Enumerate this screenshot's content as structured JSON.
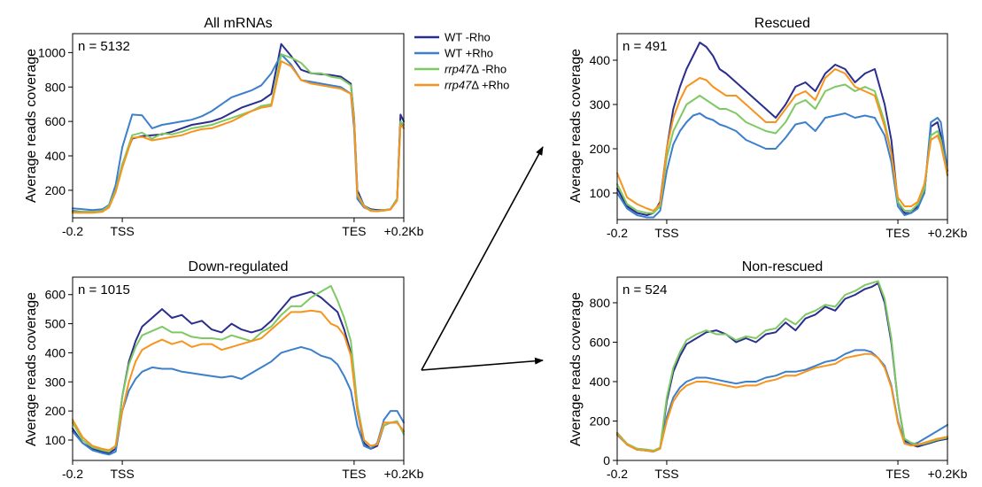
{
  "chart_data": [
    {
      "id": "all",
      "type": "line",
      "title": "All mRNAs",
      "ylabel": "Average reads coverage",
      "xlabel": "",
      "n_label": "n = 5132",
      "xlim": [
        0,
        100
      ],
      "ylim": [
        40,
        1110
      ],
      "yticks": [
        200,
        400,
        600,
        800,
        1000
      ],
      "xticks": [
        {
          "x": 0,
          "label": "-0.2"
        },
        {
          "x": 15,
          "label": "TSS"
        },
        {
          "x": 85,
          "label": "TES"
        },
        {
          "x": 100,
          "label": "+0.2Kb"
        }
      ],
      "x": [
        0,
        3,
        6,
        9,
        11,
        13,
        15,
        18,
        21,
        24,
        27,
        30,
        33,
        36,
        39,
        42,
        45,
        48,
        51,
        54,
        57,
        60,
        63,
        66,
        69,
        72,
        75,
        78,
        81,
        84,
        85,
        86,
        88,
        90,
        92,
        94,
        96,
        98,
        99,
        100
      ],
      "series": [
        {
          "name": "WT -Rho",
          "values": [
            80,
            75,
            75,
            80,
            110,
            200,
            350,
            500,
            515,
            520,
            525,
            540,
            560,
            580,
            590,
            600,
            620,
            650,
            680,
            700,
            720,
            760,
            1050,
            980,
            900,
            880,
            875,
            870,
            860,
            820,
            620,
            200,
            110,
            90,
            85,
            85,
            90,
            150,
            640,
            600
          ]
        },
        {
          "name": "WT +Rho",
          "values": [
            95,
            90,
            85,
            90,
            115,
            230,
            450,
            640,
            635,
            560,
            580,
            590,
            600,
            610,
            630,
            660,
            700,
            740,
            760,
            780,
            810,
            880,
            990,
            930,
            840,
            830,
            820,
            810,
            800,
            760,
            560,
            150,
            100,
            85,
            80,
            82,
            90,
            150,
            590,
            560
          ]
        },
        {
          "name": "rrp47Δ -Rho",
          "values": [
            75,
            75,
            75,
            80,
            110,
            200,
            350,
            520,
            535,
            500,
            530,
            525,
            540,
            560,
            570,
            580,
            600,
            620,
            640,
            660,
            690,
            700,
            990,
            970,
            940,
            880,
            880,
            860,
            850,
            810,
            610,
            180,
            110,
            85,
            80,
            85,
            90,
            150,
            600,
            580
          ]
        },
        {
          "name": "rrp47Δ +Rho",
          "values": [
            70,
            70,
            70,
            75,
            100,
            190,
            330,
            505,
            510,
            490,
            500,
            510,
            520,
            540,
            555,
            560,
            580,
            600,
            630,
            660,
            680,
            690,
            950,
            920,
            840,
            820,
            810,
            800,
            790,
            760,
            600,
            170,
            105,
            80,
            78,
            82,
            88,
            140,
            580,
            560
          ]
        }
      ]
    },
    {
      "id": "down",
      "type": "line",
      "title": "Down-regulated",
      "ylabel": "Average reads coverage",
      "xlabel": "",
      "n_label": "n = 1015",
      "xlim": [
        0,
        100
      ],
      "ylim": [
        30,
        660
      ],
      "yticks": [
        100,
        200,
        300,
        400,
        500,
        600
      ],
      "xticks": [
        {
          "x": 0,
          "label": "-0.2"
        },
        {
          "x": 15,
          "label": "TSS"
        },
        {
          "x": 85,
          "label": "TES"
        },
        {
          "x": 100,
          "label": "+0.2Kb"
        }
      ],
      "x": [
        0,
        3,
        6,
        9,
        11,
        13,
        15,
        17,
        19,
        21,
        24,
        27,
        30,
        33,
        36,
        39,
        42,
        45,
        48,
        51,
        54,
        57,
        60,
        63,
        66,
        69,
        72,
        75,
        78,
        80,
        82,
        84,
        86,
        88,
        90,
        92,
        94,
        96,
        98,
        100
      ],
      "series": [
        {
          "name": "WT -Rho",
          "values": [
            140,
            90,
            70,
            60,
            55,
            70,
            250,
            370,
            440,
            490,
            520,
            550,
            520,
            530,
            500,
            510,
            480,
            470,
            500,
            480,
            470,
            480,
            510,
            550,
            590,
            600,
            610,
            590,
            560,
            540,
            480,
            400,
            200,
            90,
            70,
            80,
            150,
            160,
            160,
            130
          ]
        },
        {
          "name": "WT +Rho",
          "values": [
            130,
            90,
            65,
            55,
            50,
            60,
            200,
            270,
            310,
            335,
            350,
            345,
            345,
            335,
            330,
            325,
            320,
            315,
            320,
            310,
            330,
            350,
            370,
            400,
            410,
            420,
            410,
            390,
            380,
            360,
            320,
            270,
            150,
            80,
            70,
            90,
            170,
            200,
            200,
            160
          ]
        },
        {
          "name": "rrp47Δ -Rho",
          "values": [
            160,
            100,
            75,
            65,
            60,
            80,
            250,
            360,
            420,
            460,
            475,
            490,
            470,
            470,
            455,
            450,
            450,
            445,
            460,
            450,
            440,
            470,
            490,
            530,
            560,
            560,
            590,
            610,
            630,
            580,
            520,
            440,
            220,
            100,
            80,
            85,
            150,
            160,
            165,
            120
          ]
        },
        {
          "name": "rrp47Δ +Rho",
          "values": [
            170,
            110,
            80,
            70,
            65,
            80,
            200,
            300,
            370,
            410,
            430,
            445,
            430,
            440,
            420,
            430,
            430,
            410,
            420,
            430,
            440,
            450,
            480,
            510,
            540,
            540,
            545,
            540,
            500,
            490,
            460,
            390,
            200,
            100,
            80,
            85,
            160,
            160,
            160,
            130
          ]
        }
      ]
    },
    {
      "id": "rescued",
      "type": "line",
      "title": "Rescued",
      "ylabel": "Average reads coverage",
      "xlabel": "",
      "n_label": "n = 491",
      "xlim": [
        0,
        100
      ],
      "ylim": [
        40,
        460
      ],
      "yticks": [
        100,
        200,
        300,
        400
      ],
      "xticks": [
        {
          "x": 0,
          "label": "-0.2"
        },
        {
          "x": 15,
          "label": "TSS"
        },
        {
          "x": 85,
          "label": "TES"
        },
        {
          "x": 100,
          "label": "+0.2Kb"
        }
      ],
      "x": [
        0,
        3,
        6,
        9,
        11,
        13,
        15,
        17,
        19,
        21,
        23,
        25,
        27,
        29,
        31,
        33,
        36,
        39,
        42,
        45,
        48,
        51,
        54,
        57,
        60,
        63,
        66,
        69,
        72,
        75,
        78,
        81,
        83,
        85,
        87,
        89,
        91,
        93,
        95,
        97,
        98,
        100
      ],
      "series": [
        {
          "name": "WT -Rho",
          "values": [
            110,
            70,
            55,
            50,
            55,
            80,
            200,
            290,
            340,
            380,
            410,
            440,
            430,
            410,
            380,
            370,
            350,
            330,
            310,
            290,
            270,
            300,
            340,
            350,
            330,
            370,
            390,
            380,
            350,
            370,
            380,
            300,
            220,
            80,
            55,
            55,
            70,
            100,
            250,
            260,
            230,
            140
          ]
        },
        {
          "name": "WT +Rho",
          "values": [
            100,
            65,
            50,
            45,
            45,
            60,
            150,
            210,
            240,
            260,
            275,
            280,
            270,
            265,
            255,
            250,
            240,
            220,
            210,
            200,
            200,
            225,
            255,
            260,
            240,
            270,
            275,
            280,
            270,
            275,
            270,
            230,
            170,
            70,
            50,
            55,
            65,
            100,
            260,
            270,
            260,
            150
          ]
        },
        {
          "name": "rrp47Δ -Rho",
          "values": [
            120,
            75,
            60,
            55,
            55,
            70,
            180,
            240,
            270,
            300,
            310,
            320,
            310,
            300,
            290,
            290,
            280,
            260,
            250,
            240,
            235,
            260,
            300,
            310,
            290,
            330,
            340,
            345,
            330,
            340,
            330,
            260,
            190,
            80,
            60,
            60,
            75,
            110,
            230,
            240,
            220,
            140
          ]
        },
        {
          "name": "rrp47Δ +Rho",
          "values": [
            145,
            90,
            75,
            65,
            60,
            75,
            200,
            270,
            310,
            340,
            350,
            360,
            355,
            340,
            330,
            320,
            320,
            300,
            280,
            260,
            260,
            290,
            320,
            330,
            310,
            360,
            380,
            370,
            340,
            330,
            320,
            250,
            190,
            90,
            70,
            70,
            80,
            120,
            220,
            230,
            210,
            140
          ]
        }
      ]
    },
    {
      "id": "nonrescued",
      "type": "line",
      "title": "Non-rescued",
      "ylabel": "Average reads coverage",
      "xlabel": "",
      "n_label": "n = 524",
      "xlim": [
        0,
        100
      ],
      "ylim": [
        0,
        930
      ],
      "yticks": [
        0,
        200,
        400,
        600,
        800
      ],
      "xticks": [
        {
          "x": 0,
          "label": "-0.2"
        },
        {
          "x": 15,
          "label": "TSS"
        },
        {
          "x": 85,
          "label": "TES"
        },
        {
          "x": 100,
          "label": "+0.2Kb"
        }
      ],
      "x": [
        0,
        3,
        6,
        9,
        11,
        13,
        15,
        17,
        19,
        21,
        24,
        27,
        30,
        33,
        36,
        39,
        42,
        45,
        48,
        51,
        54,
        57,
        60,
        63,
        66,
        69,
        72,
        75,
        77,
        79,
        81,
        83,
        85,
        87,
        89,
        91,
        93,
        95,
        97,
        100
      ],
      "series": [
        {
          "name": "WT -Rho",
          "values": [
            140,
            80,
            55,
            50,
            45,
            60,
            300,
            450,
            530,
            590,
            620,
            650,
            660,
            640,
            600,
            620,
            600,
            640,
            650,
            700,
            660,
            720,
            740,
            780,
            760,
            820,
            840,
            870,
            880,
            900,
            800,
            600,
            300,
            100,
            80,
            70,
            80,
            90,
            100,
            110
          ]
        },
        {
          "name": "WT +Rho",
          "values": [
            130,
            80,
            55,
            50,
            45,
            60,
            220,
            320,
            370,
            400,
            420,
            420,
            410,
            400,
            390,
            400,
            400,
            420,
            430,
            450,
            450,
            460,
            480,
            500,
            510,
            540,
            560,
            560,
            550,
            520,
            480,
            380,
            200,
            90,
            80,
            90,
            110,
            130,
            150,
            180
          ]
        },
        {
          "name": "rrp47Δ -Rho",
          "values": [
            140,
            85,
            60,
            55,
            50,
            65,
            320,
            470,
            550,
            610,
            640,
            660,
            640,
            640,
            610,
            630,
            620,
            660,
            670,
            720,
            690,
            740,
            760,
            790,
            780,
            840,
            860,
            890,
            900,
            910,
            820,
            620,
            300,
            110,
            90,
            80,
            85,
            95,
            105,
            115
          ]
        },
        {
          "name": "rrp47Δ +Rho",
          "values": [
            135,
            80,
            55,
            50,
            45,
            60,
            200,
            300,
            350,
            380,
            400,
            400,
            390,
            380,
            370,
            380,
            380,
            400,
            410,
            430,
            430,
            450,
            470,
            480,
            490,
            520,
            530,
            540,
            540,
            520,
            470,
            370,
            190,
            85,
            75,
            80,
            90,
            100,
            110,
            120
          ]
        }
      ]
    }
  ],
  "legend": {
    "items": [
      {
        "name": "WT",
        "suffix": " -Rho",
        "italic": false,
        "color": "#2b2e8c"
      },
      {
        "name": "WT",
        "suffix": " +Rho",
        "italic": false,
        "color": "#3c7fcb"
      },
      {
        "name": "rrp47",
        "suffix": "Δ -Rho",
        "italic": true,
        "color": "#7fc964"
      },
      {
        "name": "rrp47",
        "suffix": "Δ +Rho",
        "italic": true,
        "color": "#f7941d"
      }
    ]
  },
  "colors": {
    "WT -Rho": "#2b2e8c",
    "WT +Rho": "#3c7fcb",
    "rrp47Δ -Rho": "#7fc964",
    "rrp47Δ +Rho": "#f7941d"
  }
}
